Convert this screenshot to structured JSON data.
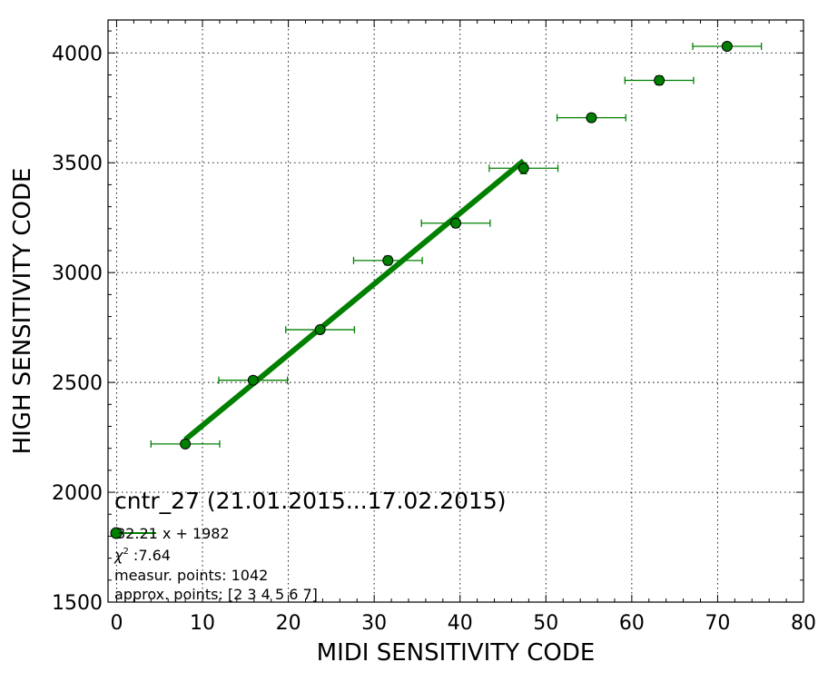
{
  "chart_data": {
    "type": "scatter",
    "xlabel": "MIDI SENSITIVITY CODE",
    "ylabel": "HIGH SENSITIVITY CODE",
    "xlim": [
      -1,
      80
    ],
    "ylim": [
      1500,
      4150
    ],
    "xticks": [
      0,
      10,
      20,
      30,
      40,
      50,
      60,
      70,
      80
    ],
    "yticks": [
      1500,
      2000,
      2500,
      3000,
      3500,
      4000
    ],
    "grid": true,
    "title": "cntr_27 (21.01.2015...17.02.2015)",
    "legend": {
      "placement": "lower-left",
      "label": "32.21 x + 1982",
      "chi2_symbol": "χ",
      "chi2_exp": "2",
      "chi2_value": " :7.64",
      "measur_points": "measur. points: 1042",
      "approx_points": "approx. points: [2 3 4 5 6 7]"
    },
    "series": [
      {
        "color": "#008000",
        "x": [
          8,
          15.9,
          23.7,
          31.6,
          39.5,
          47.4,
          55.3,
          63.2,
          71.1
        ],
        "y": [
          2220,
          2510,
          2740,
          3055,
          3225,
          3475,
          3705,
          3875,
          4030
        ],
        "x_err": [
          4,
          4,
          4,
          4,
          4,
          4,
          4,
          4,
          4
        ],
        "y_err": [
          12,
          12,
          15,
          20,
          20,
          25,
          18,
          20,
          12
        ]
      }
    ],
    "fit": {
      "slope": 32.21,
      "intercept": 1982,
      "x_range": [
        8,
        47.4
      ],
      "color": "#008000"
    }
  }
}
